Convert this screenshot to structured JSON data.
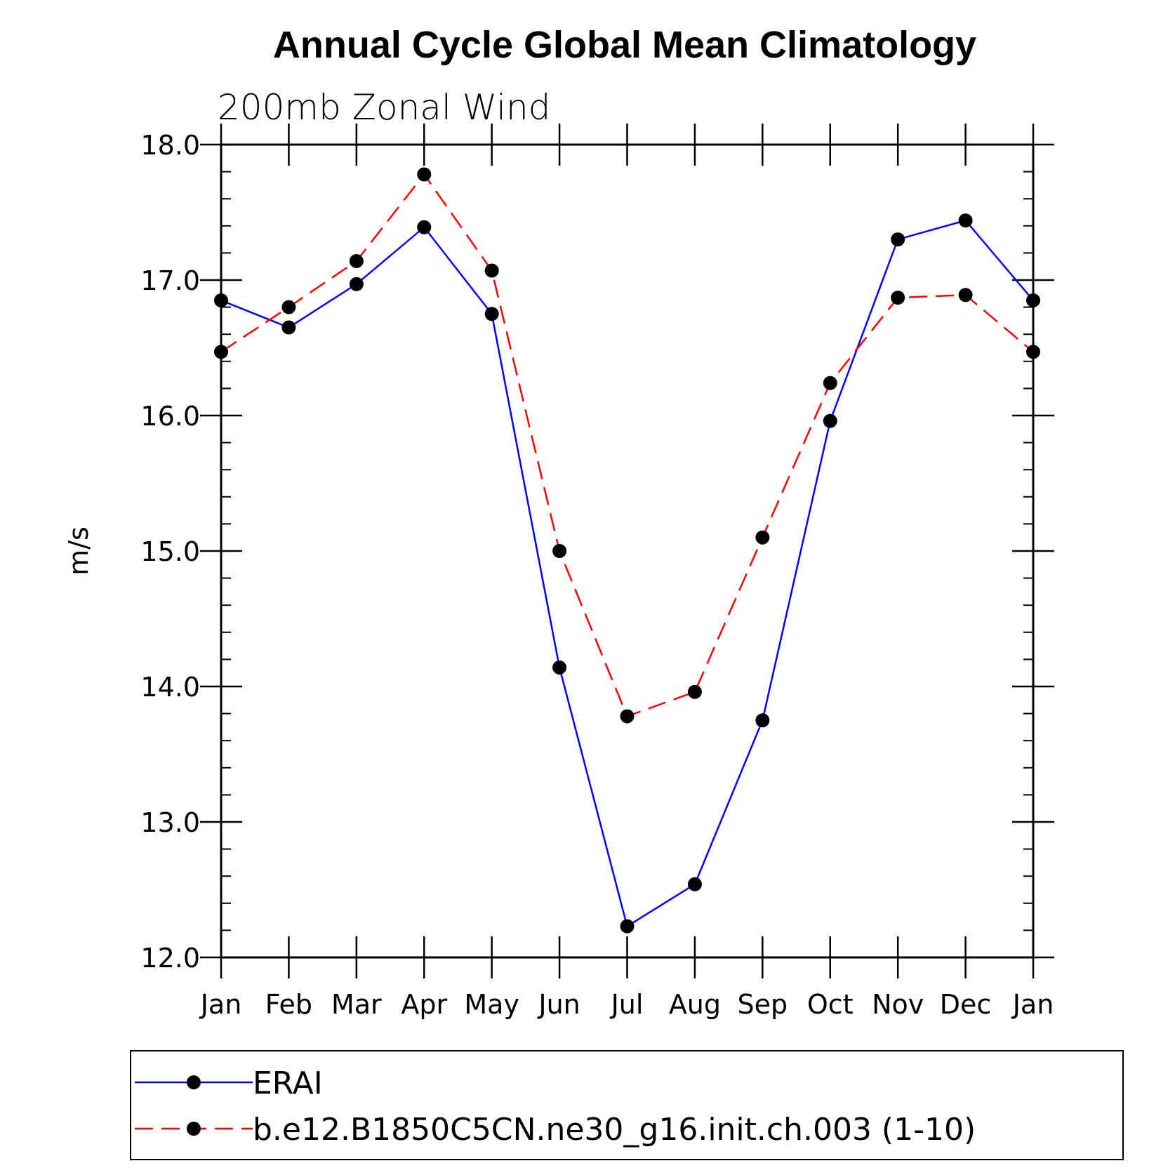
{
  "chart_data": {
    "type": "line",
    "title": "Annual Cycle Global Mean Climatology",
    "subtitle": "200mb Zonal Wind",
    "xlabel": "",
    "ylabel": "m/s",
    "categories": [
      "Jan",
      "Feb",
      "Mar",
      "Apr",
      "May",
      "Jun",
      "Jul",
      "Aug",
      "Sep",
      "Oct",
      "Nov",
      "Dec",
      "Jan"
    ],
    "ylim": [
      12.0,
      18.0
    ],
    "yticks": [
      "12.0",
      "13.0",
      "14.0",
      "15.0",
      "16.0",
      "17.0",
      "18.0"
    ],
    "grid": false,
    "legend_position": "bottom",
    "series": [
      {
        "name": "ERAI",
        "color": "#0000ff",
        "dash": "solid",
        "marker": "filled-circle",
        "values": [
          16.85,
          16.65,
          16.97,
          17.39,
          16.75,
          14.14,
          12.23,
          12.54,
          13.75,
          15.96,
          17.3,
          17.44,
          16.85
        ]
      },
      {
        "name": "b.e12.B1850C5CN.ne30_g16.init.ch.003 (1-10)",
        "color": "#ff0000",
        "dash": "dashed",
        "marker": "filled-circle",
        "values": [
          16.47,
          16.8,
          17.14,
          17.78,
          17.07,
          15.0,
          13.78,
          13.96,
          15.1,
          16.24,
          16.87,
          16.89,
          16.47
        ]
      }
    ]
  }
}
